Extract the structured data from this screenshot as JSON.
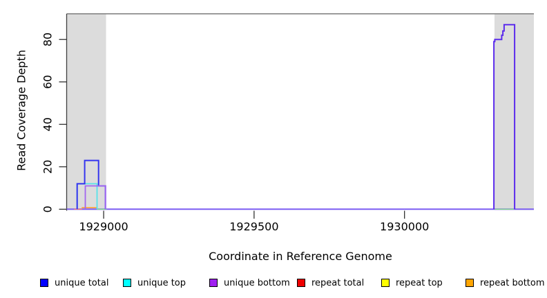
{
  "chart_data": {
    "type": "line",
    "title": "",
    "xlabel": "Coordinate in Reference Genome",
    "ylabel": "Read Coverage Depth",
    "xlim": [
      1928877,
      1930430
    ],
    "ylim": [
      0,
      92.1
    ],
    "x_ticks": [
      "1929000",
      "1929500",
      "1930000"
    ],
    "x_tick_values": [
      1929000,
      1929500,
      1930000
    ],
    "y_ticks": [
      "0",
      "20",
      "40",
      "60",
      "80"
    ],
    "y_tick_values": [
      0,
      20,
      40,
      60,
      80
    ],
    "grid": false,
    "legend_position": "bottom",
    "plot_background": "#ffffff",
    "shaded_region_color": "#dcdcdc",
    "box_line_color": "#8c8c8c",
    "axis_line_color": "#404040",
    "shaded_regions": [
      {
        "name": "left-gray-region",
        "x0": 1928877,
        "x1": 1929008
      },
      {
        "name": "right-gray-region",
        "x0": 1930299,
        "x1": 1930430
      }
    ],
    "series": [
      {
        "name": "zero-coverage-baseline",
        "color": "#7b5cf2",
        "width": 2,
        "points": [
          [
            1928877,
            0
          ],
          [
            1930430,
            0
          ]
        ]
      },
      {
        "name": "repeat-total-zero-segment",
        "color": "#ef6e7e",
        "width": 1.4,
        "points": [
          [
            1928902,
            0
          ],
          [
            1928928,
            0
          ]
        ]
      },
      {
        "name": "blend-left-zero-segment",
        "color": "#82d88c",
        "width": 1.4,
        "points": [
          [
            1928978,
            0
          ],
          [
            1929010,
            0
          ]
        ]
      },
      {
        "name": "blend-right-zero-segment",
        "color": "#82d88c",
        "width": 1.4,
        "points": [
          [
            1930300,
            0
          ],
          [
            1930364,
            0
          ]
        ]
      },
      {
        "name": "repeat-bottom-left-peak",
        "color": "#ff9e2e",
        "width": 1.6,
        "points": [
          [
            1928927,
            0.7
          ],
          [
            1928978,
            0.7
          ]
        ]
      },
      {
        "name": "unique-top-left-peak",
        "color": "#57e3e9",
        "width": 1.8,
        "points": [
          [
            1928912,
            0
          ],
          [
            1928912,
            12
          ],
          [
            1928978,
            12
          ],
          [
            1928978,
            0
          ]
        ]
      },
      {
        "name": "unique-total-left-peak",
        "color": "#3434ee",
        "width": 2,
        "points": [
          [
            1928912,
            0
          ],
          [
            1928912,
            12
          ],
          [
            1928937,
            12
          ],
          [
            1928937,
            23
          ],
          [
            1928983,
            23
          ],
          [
            1928983,
            11
          ],
          [
            1929006,
            11
          ],
          [
            1929006,
            0
          ]
        ]
      },
      {
        "name": "unique-bottom-left-peak",
        "color": "#a266f0",
        "width": 1.8,
        "points": [
          [
            1928939,
            0
          ],
          [
            1928939,
            11
          ],
          [
            1929006,
            11
          ],
          [
            1929006,
            0
          ]
        ]
      },
      {
        "name": "unique-right-peak",
        "color": "#5b2bec",
        "width": 2,
        "points": [
          [
            1930297,
            0
          ],
          [
            1930297,
            79
          ],
          [
            1930300,
            79
          ],
          [
            1930300,
            80
          ],
          [
            1930323,
            80
          ],
          [
            1930323,
            82
          ],
          [
            1930327,
            82
          ],
          [
            1930327,
            84
          ],
          [
            1930331,
            84
          ],
          [
            1930331,
            87
          ],
          [
            1930366,
            87
          ],
          [
            1930366,
            0
          ]
        ]
      }
    ],
    "legend": [
      {
        "label": "unique total",
        "color": "#0000ff"
      },
      {
        "label": "unique top",
        "color": "#00ffff"
      },
      {
        "label": "unique bottom",
        "color": "#a020f0"
      },
      {
        "label": "repeat total",
        "color": "#ee0000"
      },
      {
        "label": "repeat top",
        "color": "#ffff00"
      },
      {
        "label": "repeat bottom",
        "color": "#ffa500"
      }
    ]
  }
}
